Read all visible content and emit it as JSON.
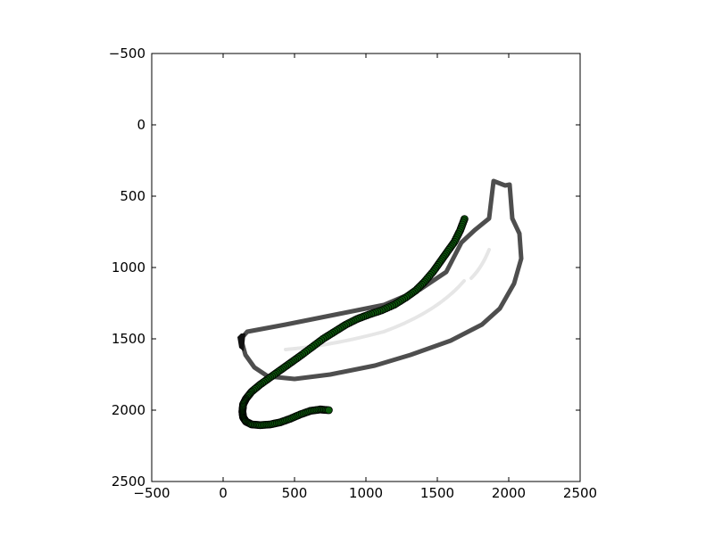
{
  "chart_data": {
    "type": "scatter",
    "title": "",
    "xlabel": "",
    "ylabel": "",
    "xlim": [
      -500,
      2500
    ],
    "ylim": [
      2500,
      -500
    ],
    "y_inverted": true,
    "grid": false,
    "legend": "none",
    "x_ticks": [
      "−500",
      "0",
      "500",
      "1000",
      "1500",
      "2000",
      "2500"
    ],
    "y_ticks": [
      "−500",
      "0",
      "500",
      "1000",
      "1500",
      "2000",
      "2500"
    ],
    "x_tick_values": [
      -500,
      0,
      500,
      1000,
      1500,
      2000,
      2500
    ],
    "y_tick_values": [
      -500,
      0,
      500,
      1000,
      1500,
      2000,
      2500
    ],
    "background_image": "banana-outline-sketch",
    "series": [
      {
        "color": "#0b5a0b",
        "marker": "circle",
        "x": [
          1690,
          1660,
          1620,
          1570,
          1520,
          1470,
          1410,
          1350,
          1280,
          1200,
          1110,
          1020,
          940,
          860,
          780,
          700,
          620,
          540,
          470,
          400,
          330,
          260,
          200,
          160,
          140,
          135,
          140,
          160,
          200,
          260,
          330,
          400,
          470,
          540,
          610,
          680,
          740
        ],
        "y": [
          660,
          740,
          820,
          890,
          960,
          1030,
          1100,
          1160,
          1210,
          1260,
          1300,
          1330,
          1360,
          1400,
          1450,
          1500,
          1560,
          1620,
          1670,
          1720,
          1770,
          1820,
          1870,
          1920,
          1960,
          2010,
          2050,
          2080,
          2100,
          2105,
          2100,
          2085,
          2060,
          2030,
          2005,
          1995,
          2000
        ]
      }
    ]
  }
}
